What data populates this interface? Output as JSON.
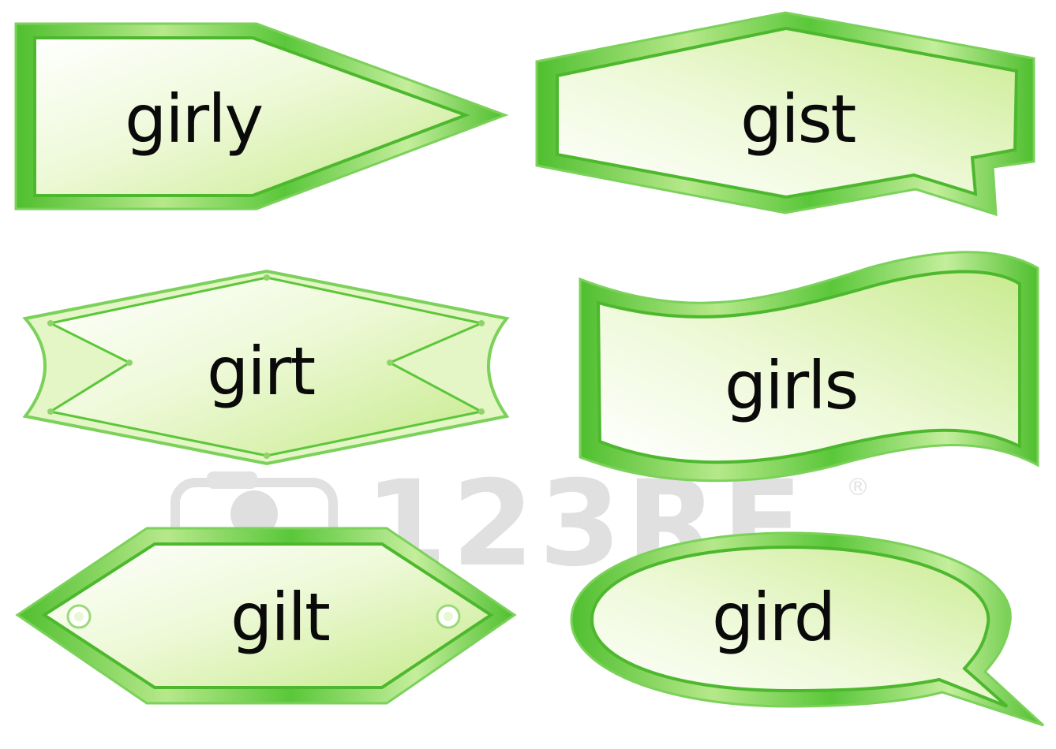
{
  "labels": {
    "top_left": "girly",
    "top_right": "gist",
    "mid_left": "girt",
    "mid_right": "girls",
    "bottom_left": "gilt",
    "bottom_right": "gird"
  },
  "watermark": {
    "brand": "123RF",
    "registered_mark": "®",
    "icon": "camera-icon"
  },
  "colors": {
    "frame_green": "#5cc63a",
    "frame_light": "#c8ef9c",
    "fill_light": "#f3fbe4",
    "fill_green": "#c6ea8a",
    "text": "#0a0a0a"
  }
}
